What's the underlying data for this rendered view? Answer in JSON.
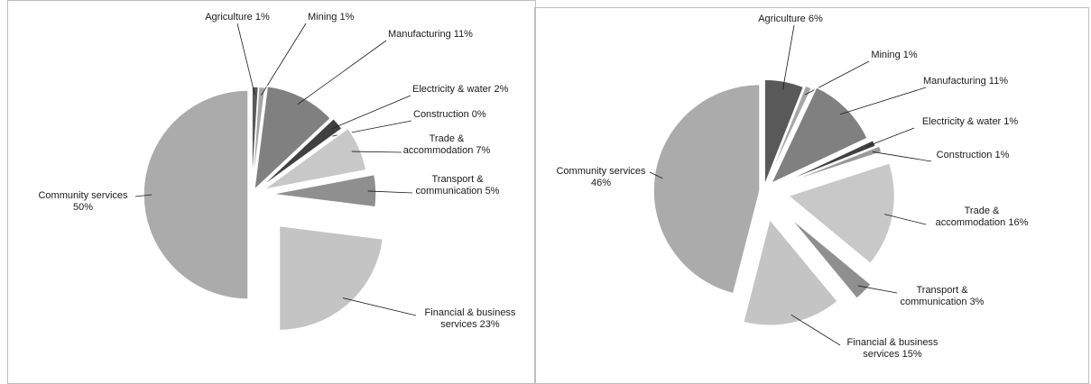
{
  "chart_data": [
    {
      "type": "pie",
      "title": "",
      "slices": [
        {
          "label": "Agriculture",
          "value": 1,
          "pct": "1%",
          "color": "#595959"
        },
        {
          "label": "Mining",
          "value": 1,
          "pct": "1%",
          "color": "#a6a6a6"
        },
        {
          "label": "Manufacturing",
          "value": 11,
          "pct": "11%",
          "color": "#808080"
        },
        {
          "label": "Electricity & water",
          "value": 2,
          "pct": "2%",
          "color": "#404040"
        },
        {
          "label": "Construction",
          "value": 0,
          "pct": "0%",
          "color": "#999999"
        },
        {
          "label": "Trade & accommodation",
          "value": 7,
          "pct": "7%",
          "color": "#c8c8c8"
        },
        {
          "label": "Transport & communication",
          "value": 5,
          "pct": "5%",
          "color": "#8f8f8f"
        },
        {
          "label": "Financial & business services",
          "value": 23,
          "pct": "23%",
          "color": "#c4c4c4"
        },
        {
          "label": "Community services",
          "value": 50,
          "pct": "50%",
          "color": "#ababab"
        }
      ]
    },
    {
      "type": "pie",
      "title": "",
      "slices": [
        {
          "label": "Agriculture",
          "value": 6,
          "pct": "6%",
          "color": "#595959"
        },
        {
          "label": "Mining",
          "value": 1,
          "pct": "1%",
          "color": "#a6a6a6"
        },
        {
          "label": "Manufacturing",
          "value": 11,
          "pct": "11%",
          "color": "#808080"
        },
        {
          "label": "Electricity & water",
          "value": 1,
          "pct": "1%",
          "color": "#404040"
        },
        {
          "label": "Construction",
          "value": 1,
          "pct": "1%",
          "color": "#999999"
        },
        {
          "label": "Trade & accommodation",
          "value": 16,
          "pct": "16%",
          "color": "#c8c8c8"
        },
        {
          "label": "Transport & communication",
          "value": 3,
          "pct": "3%",
          "color": "#8f8f8f"
        },
        {
          "label": "Financial & business services",
          "value": 15,
          "pct": "15%",
          "color": "#c4c4c4"
        },
        {
          "label": "Community services",
          "value": 46,
          "pct": "46%",
          "color": "#ababab"
        }
      ]
    }
  ]
}
